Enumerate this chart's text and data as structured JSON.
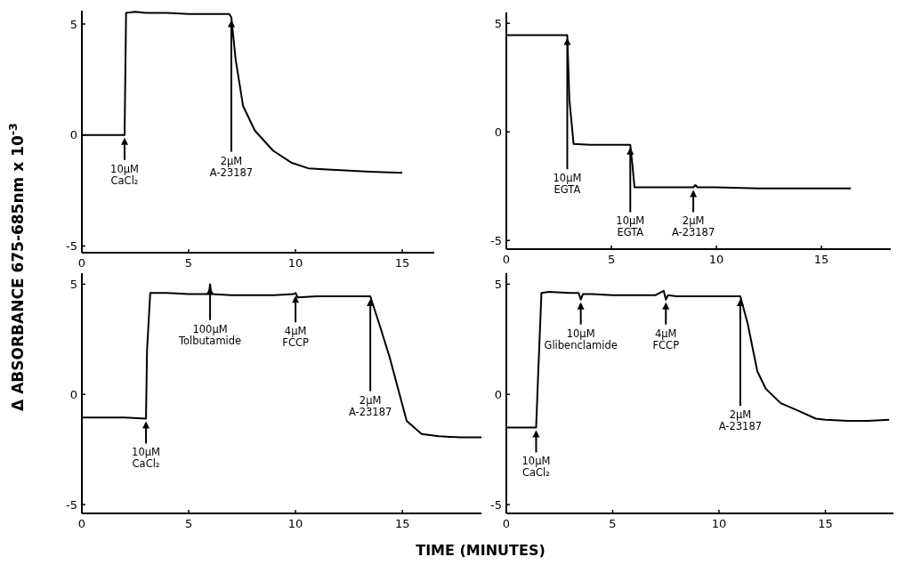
{
  "chart_data": [
    {
      "type": "line",
      "ylabel": "Δ ABSORBANCE 675-685nm x 10$^{-3}$",
      "xlim": [
        0,
        16.5
      ],
      "ylim": [
        -5.3,
        5.6
      ],
      "xticks": [
        0,
        5,
        10,
        15
      ],
      "yticks": [
        5,
        0,
        -5
      ],
      "series": [
        {
          "color": "#000000",
          "x": [
            0,
            1,
            2.0,
            2.07,
            2.5,
            3,
            4,
            5,
            6,
            6.9,
            7.0,
            7.2,
            7.55,
            8.1,
            8.95,
            9.8,
            10.6,
            11.5,
            12.5,
            13.5,
            15
          ],
          "values": [
            0,
            0,
            0,
            5.5,
            5.55,
            5.5,
            5.5,
            5.45,
            5.45,
            5.45,
            5.3,
            3.4,
            1.3,
            0.2,
            -0.7,
            -1.24,
            -1.5,
            -1.55,
            -1.6,
            -1.65,
            -1.7
          ]
        }
      ],
      "annotations": [
        {
          "text": "10μM\nCaCl₂",
          "x": 2,
          "y": 0
        },
        {
          "text": "2μM\nA-23187",
          "x": 7,
          "y": 5.3
        }
      ]
    },
    {
      "type": "line",
      "xlim": [
        0,
        18.3
      ],
      "ylim": [
        -5.4,
        5.5
      ],
      "xticks": [
        0,
        5,
        10,
        15
      ],
      "yticks": [
        5,
        0,
        -5
      ],
      "series": [
        {
          "color": "#000000",
          "x": [
            0,
            1,
            2,
            2.9,
            3.0,
            3.2,
            4,
            5,
            5.9,
            6.0,
            6.1,
            7,
            8,
            8.9,
            9,
            9.1,
            10,
            12,
            14,
            16.4
          ],
          "values": [
            4.45,
            4.45,
            4.45,
            4.45,
            1.5,
            -0.55,
            -0.6,
            -0.6,
            -0.6,
            -1.5,
            -2.55,
            -2.55,
            -2.55,
            -2.55,
            -2.45,
            -2.55,
            -2.55,
            -2.6,
            -2.6,
            -2.6
          ]
        }
      ],
      "annotations": [
        {
          "text": "10μM\nEGTA",
          "x": 2.9,
          "y": 4.45
        },
        {
          "text": "10μM\nEGTA",
          "x": 5.9,
          "y": -0.6
        },
        {
          "text": "2μM\nA-23187",
          "x": 8.9,
          "y": -2.55
        }
      ]
    },
    {
      "type": "line",
      "xlabel": "TIME (MINUTES)",
      "xlim": [
        0,
        18.7
      ],
      "ylim": [
        -5.4,
        5.5
      ],
      "xticks": [
        0,
        5,
        10,
        15
      ],
      "yticks": [
        5,
        0,
        -5
      ],
      "series": [
        {
          "color": "#000000",
          "x": [
            0,
            1,
            2,
            3.0,
            3.05,
            3.2,
            4,
            5,
            5.95,
            6.0,
            6.05,
            7,
            8,
            9,
            9.9,
            10,
            10.1,
            11,
            12,
            13,
            13.5,
            13.6,
            13.95,
            14.4,
            14.8,
            15.2,
            15.9,
            16.7,
            17.7,
            18.7
          ],
          "values": [
            -1.05,
            -1.05,
            -1.05,
            -1.1,
            2,
            4.6,
            4.6,
            4.55,
            4.55,
            5.0,
            4.55,
            4.5,
            4.5,
            4.5,
            4.55,
            4.6,
            4.4,
            4.45,
            4.45,
            4.45,
            4.45,
            4.15,
            3.1,
            1.7,
            0.25,
            -1.2,
            -1.8,
            -1.9,
            -1.95,
            -1.95
          ]
        }
      ],
      "annotations": [
        {
          "text": "10μM\nCaCl₂",
          "x": 3,
          "y": -1.1
        },
        {
          "text": "100μM\nTolbutamide",
          "x": 6,
          "y": 5.0
        },
        {
          "text": "4μM\nFCCP",
          "x": 10,
          "y": 4.6
        },
        {
          "text": "2μM\nA-23187",
          "x": 13.5,
          "y": 4.45
        }
      ]
    },
    {
      "type": "line",
      "xlim": [
        0,
        18.2
      ],
      "ylim": [
        -5.4,
        5.5
      ],
      "xticks": [
        0,
        5,
        10,
        15
      ],
      "yticks": [
        5,
        0,
        -5
      ],
      "series": [
        {
          "color": "#000000",
          "x": [
            0,
            0.5,
            1.4,
            1.5,
            1.65,
            2,
            3,
            3.4,
            3.5,
            3.6,
            4,
            5,
            6,
            7,
            7.4,
            7.5,
            7.6,
            8,
            9,
            10,
            11,
            11.35,
            11.8,
            12.2,
            12.9,
            13.75,
            14.55,
            15,
            16.05,
            17,
            18
          ],
          "values": [
            -1.5,
            -1.5,
            -1.5,
            1,
            4.6,
            4.65,
            4.6,
            4.6,
            4.3,
            4.55,
            4.55,
            4.5,
            4.5,
            4.5,
            4.7,
            4.3,
            4.5,
            4.45,
            4.45,
            4.45,
            4.45,
            3.2,
            1.05,
            0.25,
            -0.4,
            -0.75,
            -1.1,
            -1.15,
            -1.2,
            -1.2,
            -1.15
          ]
        }
      ],
      "annotations": [
        {
          "text": "10μM\nCaCl₂",
          "x": 1.4,
          "y": -1.5
        },
        {
          "text": "10μM\nGlibenclamide",
          "x": 3.5,
          "y": 4.3
        },
        {
          "text": "4μM\nFCCP",
          "x": 7.5,
          "y": 4.3
        },
        {
          "text": "2μM\nA-23187",
          "x": 11,
          "y": 4.45
        }
      ]
    }
  ]
}
